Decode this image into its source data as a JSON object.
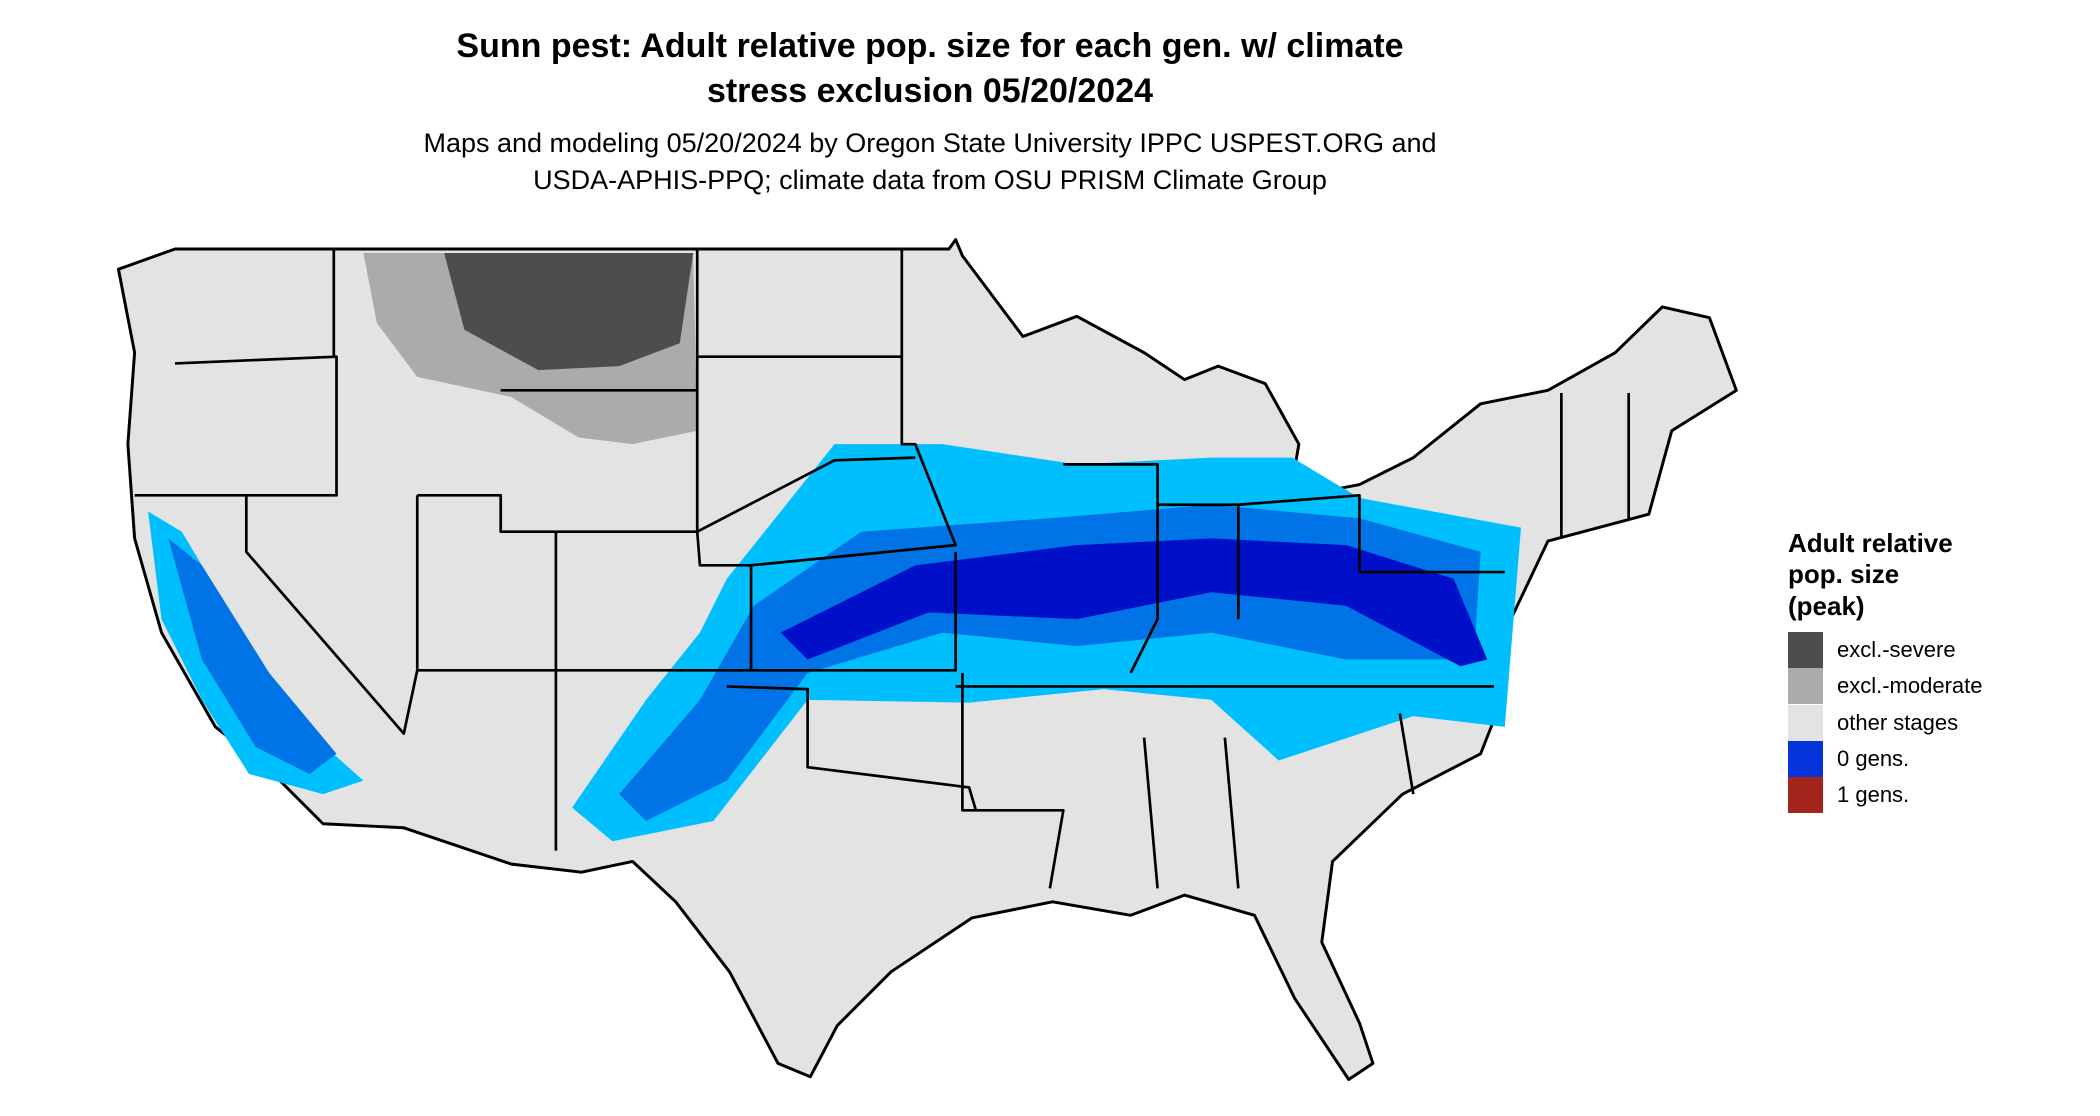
{
  "title_lines": [
    "Sunn pest: Adult relative pop. size for each gen. w/ climate",
    "stress exclusion 05/20/2024"
  ],
  "subtitle_lines": [
    "Maps and modeling 05/20/2024 by Oregon State University IPPC USPEST.ORG and",
    "USDA-APHIS-PPQ; climate data from OSU PRISM Climate Group"
  ],
  "legend": {
    "title_lines": [
      "Adult relative",
      "pop. size",
      "(peak)"
    ],
    "items": [
      {
        "label": "excl.-severe",
        "color": "#4d4d4d"
      },
      {
        "label": "excl.-moderate",
        "color": "#ababab"
      },
      {
        "label": "other stages",
        "color": "#e3e3e3"
      },
      {
        "label": "0 gens.",
        "color": "#0433d9"
      },
      {
        "label": "1 gens.",
        "color": "#a3241a"
      }
    ]
  }
}
